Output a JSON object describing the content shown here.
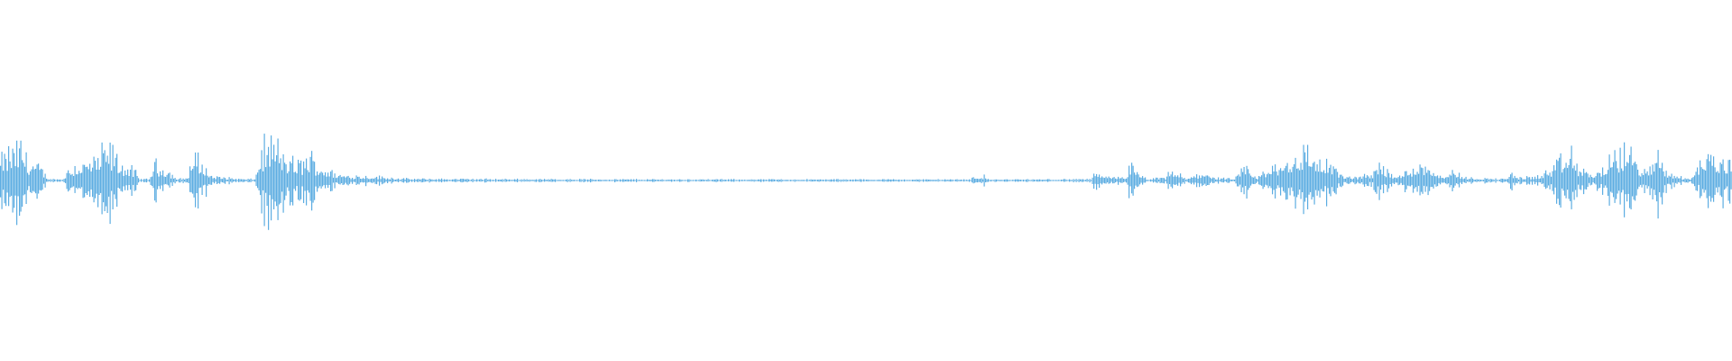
{
  "chart_data": {
    "type": "area",
    "title": "",
    "xlabel": "",
    "ylabel": "",
    "ylim": [
      -1,
      1
    ],
    "grid": false,
    "legend": "none",
    "series_color": "#5DADE2",
    "background": "#FFFFFF",
    "envelope_time_fraction_vs_amplitude": [
      [
        0.0,
        0.14
      ],
      [
        0.005,
        0.2
      ],
      [
        0.012,
        0.25
      ],
      [
        0.016,
        0.14
      ],
      [
        0.022,
        0.1
      ],
      [
        0.028,
        0.01
      ],
      [
        0.036,
        0.01
      ],
      [
        0.04,
        0.1
      ],
      [
        0.055,
        0.14
      ],
      [
        0.062,
        0.24
      ],
      [
        0.07,
        0.12
      ],
      [
        0.078,
        0.06
      ],
      [
        0.08,
        0.01
      ],
      [
        0.086,
        0.01
      ],
      [
        0.088,
        0.12
      ],
      [
        0.095,
        0.09
      ],
      [
        0.102,
        0.01
      ],
      [
        0.108,
        0.02
      ],
      [
        0.111,
        0.18
      ],
      [
        0.118,
        0.1
      ],
      [
        0.122,
        0.03
      ],
      [
        0.14,
        0.01
      ],
      [
        0.147,
        0.01
      ],
      [
        0.15,
        0.2
      ],
      [
        0.157,
        0.28
      ],
      [
        0.165,
        0.15
      ],
      [
        0.172,
        0.12
      ],
      [
        0.178,
        0.18
      ],
      [
        0.185,
        0.1
      ],
      [
        0.195,
        0.04
      ],
      [
        0.215,
        0.03
      ],
      [
        0.235,
        0.012
      ],
      [
        0.3,
        0.01
      ],
      [
        0.4,
        0.008
      ],
      [
        0.5,
        0.008
      ],
      [
        0.56,
        0.008
      ],
      [
        0.562,
        0.03
      ],
      [
        0.568,
        0.03
      ],
      [
        0.57,
        0.008
      ],
      [
        0.6,
        0.008
      ],
      [
        0.63,
        0.01
      ],
      [
        0.633,
        0.08
      ],
      [
        0.636,
        0.02
      ],
      [
        0.65,
        0.03
      ],
      [
        0.652,
        0.12
      ],
      [
        0.656,
        0.05
      ],
      [
        0.662,
        0.01
      ],
      [
        0.673,
        0.02
      ],
      [
        0.675,
        0.08
      ],
      [
        0.682,
        0.03
      ],
      [
        0.685,
        0.01
      ],
      [
        0.696,
        0.07
      ],
      [
        0.7,
        0.02
      ],
      [
        0.712,
        0.01
      ],
      [
        0.72,
        0.1
      ],
      [
        0.725,
        0.02
      ],
      [
        0.735,
        0.1
      ],
      [
        0.745,
        0.16
      ],
      [
        0.752,
        0.22
      ],
      [
        0.76,
        0.16
      ],
      [
        0.77,
        0.1
      ],
      [
        0.776,
        0.02
      ],
      [
        0.792,
        0.04
      ],
      [
        0.795,
        0.15
      ],
      [
        0.8,
        0.08
      ],
      [
        0.806,
        0.02
      ],
      [
        0.815,
        0.1
      ],
      [
        0.825,
        0.12
      ],
      [
        0.832,
        0.03
      ],
      [
        0.84,
        0.07
      ],
      [
        0.845,
        0.02
      ],
      [
        0.87,
        0.01
      ],
      [
        0.872,
        0.08
      ],
      [
        0.876,
        0.02
      ],
      [
        0.888,
        0.03
      ],
      [
        0.895,
        0.08
      ],
      [
        0.907,
        0.2
      ],
      [
        0.912,
        0.08
      ],
      [
        0.92,
        0.04
      ],
      [
        0.926,
        0.1
      ],
      [
        0.94,
        0.24
      ],
      [
        0.946,
        0.1
      ],
      [
        0.952,
        0.06
      ],
      [
        0.957,
        0.22
      ],
      [
        0.963,
        0.05
      ],
      [
        0.975,
        0.01
      ],
      [
        0.98,
        0.1
      ],
      [
        0.985,
        0.2
      ],
      [
        0.992,
        0.14
      ],
      [
        1.0,
        0.16
      ]
    ]
  }
}
